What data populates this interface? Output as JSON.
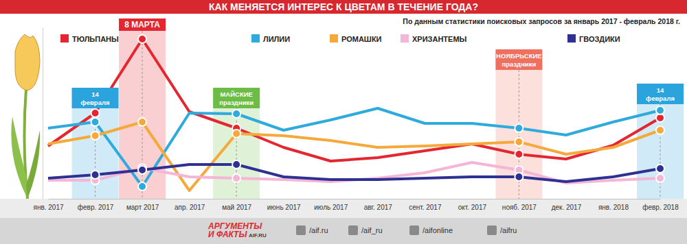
{
  "chart_data": {
    "type": "line",
    "title": "КАК МЕНЯЕТСЯ ИНТЕРЕС К ЦВЕТАМ В ТЕЧЕНИЕ ГОДА?",
    "subtitle": "По данным статистики поисковых запросов за январь 2017 - февраль 2018 г.",
    "categories": [
      "янв. 2017",
      "февр. 2017",
      "март 2017",
      "апр. 2017",
      "май 2017",
      "июнь 2017",
      "июль 2017",
      "авг. 2017",
      "сент. 2017",
      "окт. 2017",
      "нояб. 2017",
      "дек. 2017",
      "янв. 2018",
      "февр. 2018"
    ],
    "series": [
      {
        "name": "ТЮЛЬПАНЫ",
        "color": "#e3262f",
        "marker": "circle",
        "values": [
          77,
          125,
          233,
          127,
          103,
          75,
          55,
          60,
          70,
          80,
          65,
          58,
          78,
          118
        ]
      },
      {
        "name": "ЛИЛИИ",
        "color": "#2eaadc",
        "marker": "circle",
        "values": [
          103,
          112,
          18,
          125,
          124,
          100,
          115,
          132,
          110,
          110,
          103,
          93,
          112,
          129
        ]
      },
      {
        "name": "РОМАШКИ",
        "color": "#f6a93b",
        "marker": "circle",
        "values": [
          80,
          92,
          112,
          12,
          95,
          92,
          85,
          75,
          77,
          80,
          83,
          65,
          75,
          100
        ]
      },
      {
        "name": "ХРИЗАНТЕМЫ",
        "color": "#f5b5d6",
        "marker": "circle",
        "values": [
          27,
          27,
          45,
          32,
          30,
          28,
          25,
          30,
          38,
          53,
          42,
          23,
          27,
          30
        ]
      },
      {
        "name": "ГВОЗДИКИ",
        "color": "#2e3192",
        "marker": "circle",
        "values": [
          30,
          35,
          42,
          50,
          50,
          32,
          28,
          28,
          30,
          32,
          32,
          25,
          32,
          44
        ]
      }
    ],
    "ylim": [
      0,
      250
    ],
    "tick_labels": "x",
    "legend": "top",
    "annotations": [
      {
        "lines": [
          "14",
          "февраля"
        ],
        "category": 1,
        "color": "#2ba3dc"
      },
      {
        "lines": [
          "8 МАРТА"
        ],
        "category": 2,
        "color": "#e3262f"
      },
      {
        "lines": [
          "МАЙСКИЕ",
          "праздники"
        ],
        "category": 4,
        "color": "#6cbd45"
      },
      {
        "lines": [
          "НОЯБРЬСКИЕ",
          "праздники"
        ],
        "category": 10,
        "color": "#f0705f"
      },
      {
        "lines": [
          "14",
          "февраля"
        ],
        "category": 13,
        "color": "#2ba3dc"
      }
    ]
  },
  "footer": {
    "logo": [
      "АРГУМЕНТЫ",
      "И ФАКТЫ"
    ],
    "site": "AIF.RU",
    "links": [
      "/aif.ru",
      "/aif_ru",
      "/aifonline",
      "/aifru"
    ]
  }
}
